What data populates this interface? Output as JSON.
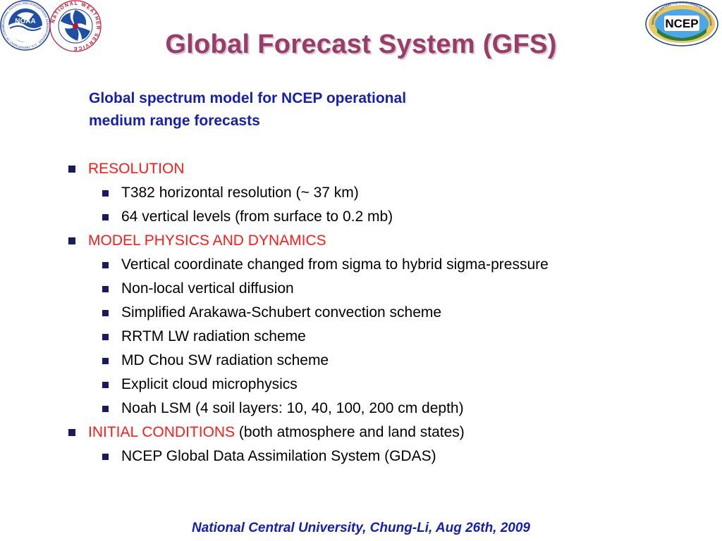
{
  "slide": {
    "title": "Global Forecast System (GFS)",
    "subtitle_line1": "Global spectrum model for NCEP operational",
    "subtitle_line2": "medium range forecasts",
    "footer": "National Central University, Chung-Li, Aug 26th, 2009"
  },
  "logos": {
    "noaa_text": "NOAA",
    "nws_text": "NATIONAL WEATHER SERVICE",
    "ncep_text": "NCEP",
    "ncep_ring_text": "NATIONAL CENTERS FOR ENVIRONMENTAL PREDICTION",
    "noaa_ring_text": "NATIONAL OCEANIC AND ATMOSPHERIC ADMINISTRATION · U.S. DEPARTMENT OF COMMERCE"
  },
  "sections": [
    {
      "heading": "RESOLUTION",
      "heading_suffix": "",
      "items": [
        "T382 horizontal resolution (~ 37 km)",
        "64 vertical levels (from surface to 0.2 mb)"
      ]
    },
    {
      "heading": "MODEL PHYSICS AND DYNAMICS",
      "heading_suffix": "",
      "items": [
        "Vertical coordinate changed from sigma to hybrid sigma-pressure",
        "Non-local vertical diffusion",
        "Simplified Arakawa-Schubert convection scheme",
        "RRTM LW radiation scheme",
        "MD Chou SW radiation scheme",
        "Explicit cloud microphysics",
        "Noah LSM (4 soil layers: 10, 40, 100, 200 cm depth)"
      ]
    },
    {
      "heading": "INITIAL CONDITIONS",
      "heading_suffix": " (both atmosphere and land states)",
      "items": [
        "NCEP Global Data Assimilation System (GDAS)"
      ]
    }
  ],
  "colors": {
    "title": "#9b3b68",
    "subtitle": "#1620b0",
    "heading_red": "#ff1a1a",
    "bullet": "#1a1a5e",
    "footer": "#1620b0"
  }
}
